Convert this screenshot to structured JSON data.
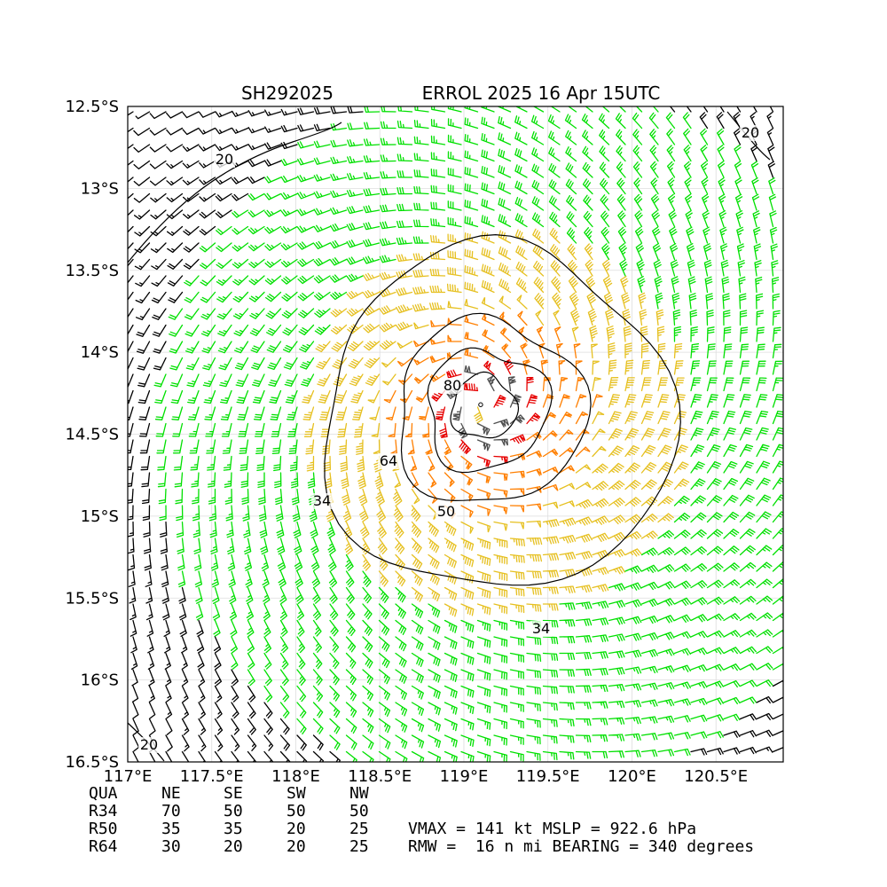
{
  "header": {
    "storm_id": "SH292025",
    "title": "ERROL 2025 16 Apr 15UTC"
  },
  "chart_data": {
    "type": "wind_barb_map",
    "grid": true,
    "xlim": [
      117.0,
      120.9
    ],
    "ylim": [
      -16.5,
      -12.5
    ],
    "x_ticks": [
      {
        "value": 117.0,
        "label": "117°E"
      },
      {
        "value": 117.5,
        "label": "117.5°E"
      },
      {
        "value": 118.0,
        "label": "118°E"
      },
      {
        "value": 118.5,
        "label": "118.5°E"
      },
      {
        "value": 119.0,
        "label": "119°E"
      },
      {
        "value": 119.5,
        "label": "119.5°E"
      },
      {
        "value": 120.0,
        "label": "120°E"
      },
      {
        "value": 120.5,
        "label": "120.5°E"
      }
    ],
    "y_ticks": [
      {
        "value": -12.5,
        "label": "12.5°S"
      },
      {
        "value": -13.0,
        "label": "13°S"
      },
      {
        "value": -13.5,
        "label": "13.5°S"
      },
      {
        "value": -14.0,
        "label": "14°S"
      },
      {
        "value": -14.5,
        "label": "14.5°S"
      },
      {
        "value": -15.0,
        "label": "15°S"
      },
      {
        "value": -15.5,
        "label": "15.5°S"
      },
      {
        "value": -16.0,
        "label": "16°S"
      },
      {
        "value": -16.5,
        "label": "16.5°S"
      }
    ],
    "center": {
      "lon": 119.1,
      "lat": -14.32
    },
    "barb_color_classes": [
      {
        "min_kt": 0,
        "color": "#000000"
      },
      {
        "min_kt": 20,
        "color": "#00e000"
      },
      {
        "min_kt": 34,
        "color": "#e6c020"
      },
      {
        "min_kt": 50,
        "color": "#ff7f00"
      },
      {
        "min_kt": 64,
        "color": "#e60000"
      },
      {
        "min_kt": 100,
        "color": "#505050"
      }
    ],
    "contours": [
      {
        "level": 20,
        "label": "20"
      },
      {
        "level": 34,
        "label": "34"
      },
      {
        "level": 50,
        "label": "50"
      },
      {
        "level": 64,
        "label": "64"
      },
      {
        "level": 80,
        "label": "80"
      }
    ]
  },
  "wind_radii": {
    "headers": [
      "QUA",
      "NE",
      "SE",
      "SW",
      "NW"
    ],
    "rows": [
      {
        "label": "R34",
        "values": [
          "70",
          "50",
          "50",
          "50"
        ]
      },
      {
        "label": "R50",
        "values": [
          "35",
          "35",
          "20",
          "25"
        ]
      },
      {
        "label": "R64",
        "values": [
          "30",
          "20",
          "20",
          "25"
        ]
      }
    ]
  },
  "summary": {
    "line1": "VMAX = 141 kt MSLP = 922.6 hPa",
    "line2": "RMW =  16 n mi BEARING = 340 degrees"
  }
}
